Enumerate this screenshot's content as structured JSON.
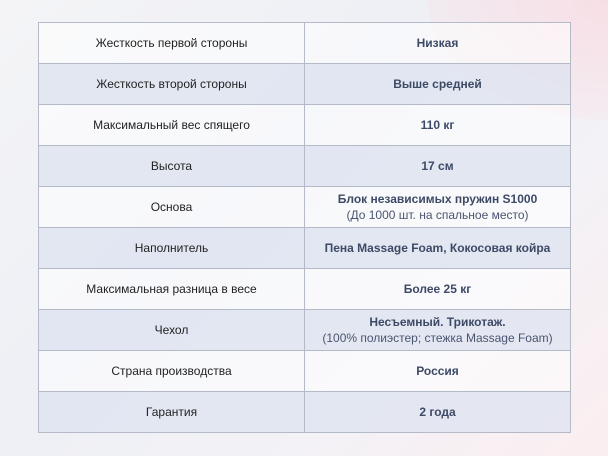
{
  "rows": [
    {
      "label": "Жесткость первой стороны",
      "value": "Низкая",
      "sub": ""
    },
    {
      "label": "Жесткость второй стороны",
      "value": "Выше средней",
      "sub": ""
    },
    {
      "label": "Максимальный вес спящего",
      "value": "110 кг",
      "sub": ""
    },
    {
      "label": "Высота",
      "value": "17 см",
      "sub": ""
    },
    {
      "label": "Основа",
      "value": "Блок независимых пружин S1000",
      "sub": "(До 1000 шт. на спальное место)"
    },
    {
      "label": "Наполнитель",
      "value": "Пена Massage Foam, Кокосовая койра",
      "sub": ""
    },
    {
      "label": "Максимальная разница в весе",
      "value": "Более 25 кг",
      "sub": ""
    },
    {
      "label": "Чехол",
      "value": "Несъемный. Трикотаж.",
      "sub": "(100% полиэстер; стежка Massage Foam)"
    },
    {
      "label": "Страна производства",
      "value": "Россия",
      "sub": ""
    },
    {
      "label": "Гарантия",
      "value": "2 года",
      "sub": ""
    }
  ],
  "colors": {
    "value_text": "#3d4a66",
    "stripe": "#dee3f0",
    "border": "#b4bac8"
  }
}
